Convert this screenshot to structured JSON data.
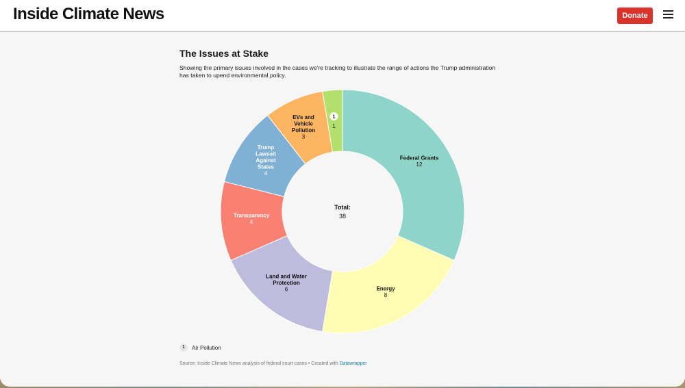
{
  "header": {
    "brand": "Inside Climate News",
    "donate_label": "Donate"
  },
  "chart": {
    "title": "The Issues at Stake",
    "description": "Showing the primary issues involved in the cases we're tracking to illustrate the range of actions the Trump administration has taken to upend environmental policy.",
    "legend": {
      "marker": "1",
      "label": "Air Pollution"
    },
    "source_text": "Source: Inside Climate News analysis of federal court cases  • Created with ",
    "source_link": "Datawrapper"
  },
  "chart_data": {
    "type": "pie",
    "variant": "donut",
    "center_label": "Total:",
    "center_value": "38",
    "slices": [
      {
        "label": "Federal Grants",
        "value": 12,
        "color": "#8fd4c8",
        "label_color": "#111111"
      },
      {
        "label": "Energy",
        "value": 8,
        "color": "#fffdb3",
        "label_color": "#111111"
      },
      {
        "label": "Land and Water Protection",
        "value": 6,
        "color": "#bebbdc",
        "label_color": "#111111"
      },
      {
        "label": "Transparency",
        "value": 4,
        "color": "#f98173",
        "label_color": "#ffffff"
      },
      {
        "label": "Trump Lawsuit Against States",
        "value": 4,
        "color": "#80b1d4",
        "label_color": "#ffffff"
      },
      {
        "label": "EVs and Vehicle Pollution",
        "value": 3,
        "color": "#fdb562",
        "label_color": "#111111"
      },
      {
        "label": "1",
        "value": 1,
        "color": "#b3df6c",
        "label_color": "#111111",
        "marker": "1"
      }
    ]
  }
}
